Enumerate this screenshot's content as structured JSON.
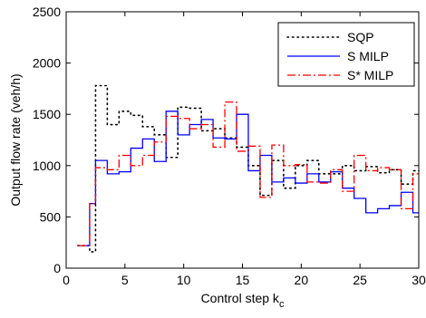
{
  "chart_data": {
    "type": "line",
    "step": true,
    "xlabel": "Control step k",
    "xlabel_subscript": "c",
    "ylabel": "Output flow rate (veh/h)",
    "xlim": [
      0,
      30
    ],
    "ylim": [
      0,
      2500
    ],
    "xticks": [
      0,
      5,
      10,
      15,
      20,
      25,
      30
    ],
    "yticks": [
      0,
      500,
      1000,
      1500,
      2000,
      2500
    ],
    "grid": false,
    "legend_position": "top-right",
    "series": [
      {
        "name": "SQP",
        "color": "#000000",
        "style": "dotted",
        "x": [
          1,
          2,
          2.5,
          3.5,
          4.5,
          5.5,
          6.5,
          7.5,
          8.5,
          9.5,
          10.5,
          11.5,
          12.5,
          13.5,
          14.5,
          15.5,
          16.5,
          17.5,
          18.5,
          19.5,
          20.5,
          21.5,
          22.5,
          23.5,
          24.5,
          25.5,
          26.5,
          27.5,
          28.5,
          29.5,
          30
        ],
        "y": [
          220,
          160,
          1780,
          1400,
          1530,
          1490,
          1380,
          1300,
          1080,
          1570,
          1560,
          1340,
          1360,
          1270,
          1180,
          1000,
          710,
          1050,
          780,
          1000,
          1050,
          920,
          920,
          1000,
          950,
          990,
          930,
          960,
          820,
          950,
          950
        ]
      },
      {
        "name": "S MILP",
        "color": "#0000ff",
        "style": "solid",
        "x": [
          1,
          2,
          2.5,
          3.5,
          4.5,
          5.5,
          6.5,
          7.5,
          8.5,
          9.5,
          10.5,
          11.5,
          12.5,
          13.5,
          14.5,
          15.5,
          16.5,
          17.5,
          18.5,
          19.5,
          20.5,
          21.5,
          22.5,
          23.5,
          24.5,
          25.5,
          26.5,
          27.5,
          28.5,
          29.5,
          30
        ],
        "y": [
          220,
          630,
          1050,
          920,
          940,
          1170,
          1260,
          1040,
          1530,
          1300,
          1400,
          1450,
          1270,
          1260,
          1500,
          950,
          1100,
          840,
          880,
          830,
          920,
          840,
          940,
          780,
          680,
          540,
          580,
          610,
          740,
          540,
          540
        ]
      },
      {
        "name": "S* MILP",
        "color": "#ff0000",
        "style": "dashdot",
        "x": [
          1,
          2,
          2.5,
          3.5,
          4.5,
          5.5,
          6.5,
          7.5,
          8.5,
          9.5,
          10.5,
          11.5,
          12.5,
          13.5,
          14.5,
          15.5,
          16.5,
          17.5,
          18.5,
          19.5,
          20.5,
          21.5,
          22.5,
          23.5,
          24.5,
          25.5,
          26.5,
          27.5,
          28.5,
          29.5,
          30
        ],
        "y": [
          220,
          630,
          980,
          960,
          1100,
          1000,
          1100,
          1230,
          1480,
          1460,
          1360,
          1400,
          1180,
          1620,
          1140,
          1190,
          690,
          1200,
          1000,
          1010,
          840,
          830,
          960,
          750,
          1100,
          950,
          980,
          960,
          580,
          920,
          920
        ]
      }
    ]
  }
}
